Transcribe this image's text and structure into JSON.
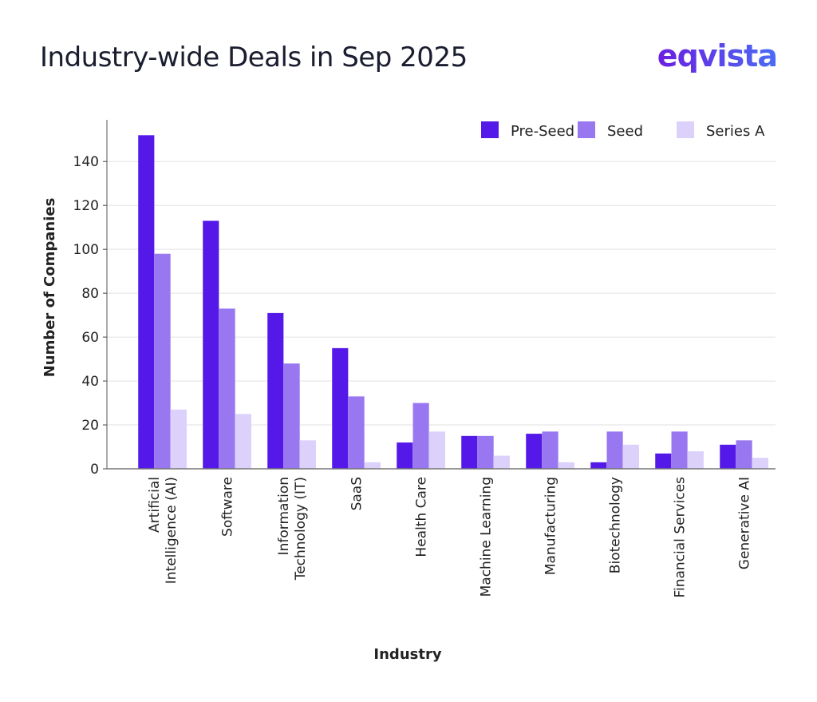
{
  "header": {
    "title": "Industry-wide Deals in Sep 2025",
    "logo": "eqvista"
  },
  "chart_data": {
    "type": "bar",
    "title": "Industry-wide Deals in Sep 2025",
    "xlabel": "Industry",
    "ylabel": "Number of Companies",
    "ylim": [
      0,
      159
    ],
    "yticks": [
      0,
      20,
      40,
      60,
      80,
      100,
      120,
      140
    ],
    "grid": true,
    "legend_position": "top-right",
    "categories": [
      "Artificial Intelligence (AI)",
      "Software",
      "Information Technology (IT)",
      "SaaS",
      "Health Care",
      "Machine Learning",
      "Manufacturing",
      "Biotechnology",
      "Financial Services",
      "Generative AI"
    ],
    "category_lines": [
      [
        "Artificial",
        "Intelligence (AI)"
      ],
      [
        "Software"
      ],
      [
        "Information",
        "Technology (IT)"
      ],
      [
        "SaaS"
      ],
      [
        "Health Care"
      ],
      [
        "Machine Learning"
      ],
      [
        "Manufacturing"
      ],
      [
        "Biotechnology"
      ],
      [
        "Financial Services"
      ],
      [
        "Generative AI"
      ]
    ],
    "series": [
      {
        "name": "Pre-Seed",
        "color": "#5419E8",
        "values": [
          152,
          113,
          71,
          55,
          12,
          15,
          16,
          3,
          7,
          11
        ]
      },
      {
        "name": "Seed",
        "color": "#9877F0",
        "values": [
          98,
          73,
          48,
          33,
          30,
          15,
          17,
          17,
          17,
          13
        ]
      },
      {
        "name": "Series A",
        "color": "#DCD1FB",
        "values": [
          27,
          25,
          13,
          3,
          17,
          6,
          3,
          11,
          8,
          5
        ]
      }
    ]
  }
}
